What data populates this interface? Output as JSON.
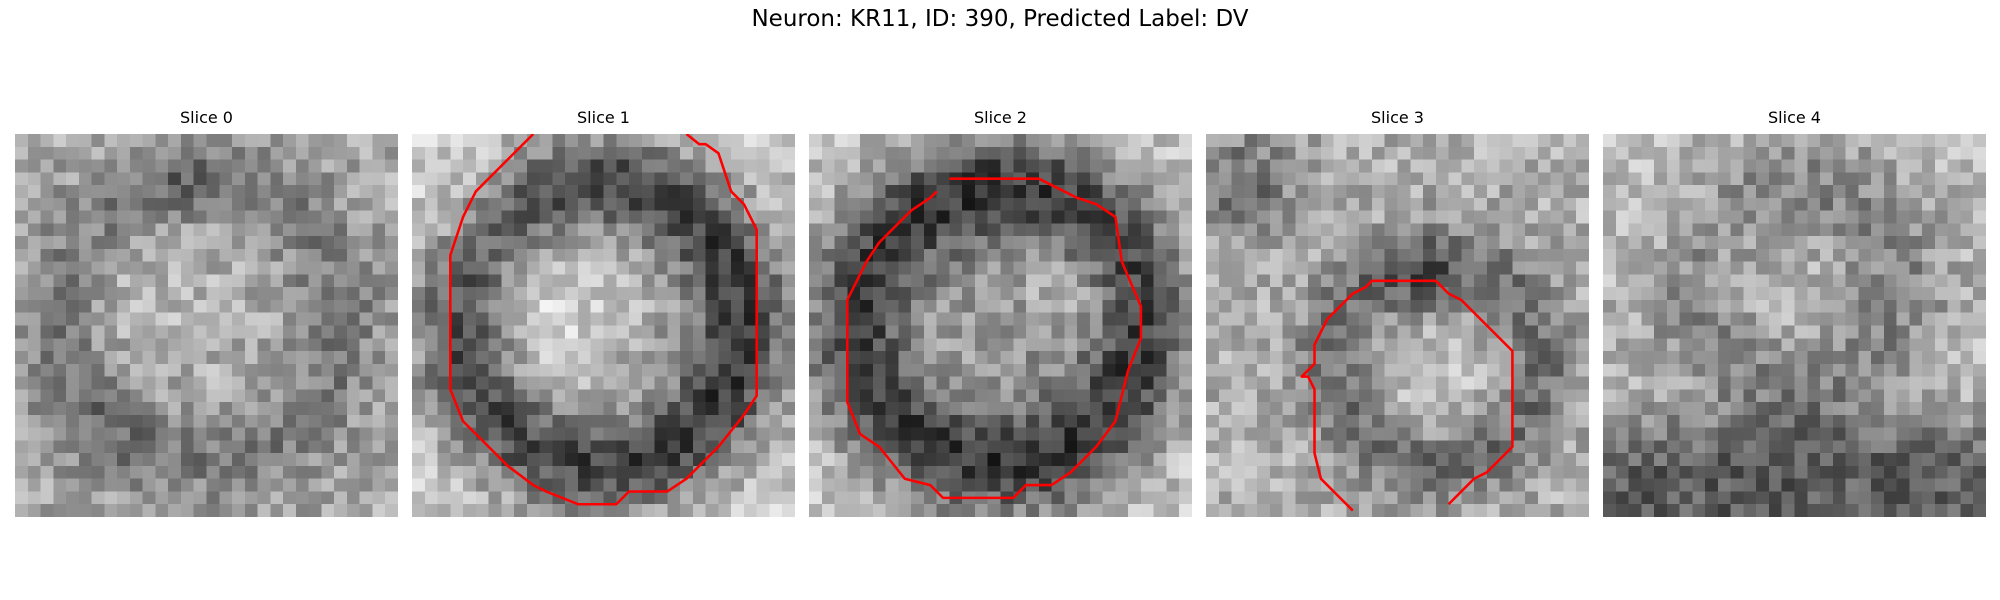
{
  "figure": {
    "title": "Neuron: KR11, ID: 390, Predicted Label: DV",
    "slices": [
      {
        "label": "Slice 0",
        "has_contour": false
      },
      {
        "label": "Slice 1",
        "has_contour": true
      },
      {
        "label": "Slice 2",
        "has_contour": true
      },
      {
        "label": "Slice 3",
        "has_contour": true
      },
      {
        "label": "Slice 4",
        "has_contour": false
      }
    ],
    "colormap": "gray",
    "contour_color": "#ff0000"
  }
}
